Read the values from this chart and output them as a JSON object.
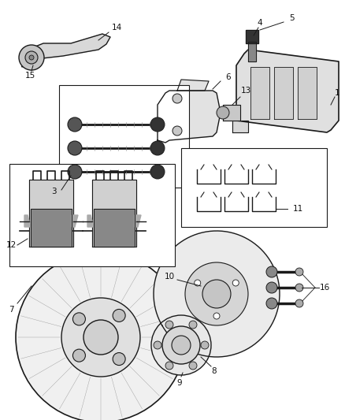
{
  "background_color": "#ffffff",
  "line_color": "#1a1a1a",
  "label_color": "#111111",
  "figsize": [
    4.38,
    5.33
  ],
  "dpi": 100,
  "xlim": [
    0,
    438
  ],
  "ylim": [
    0,
    533
  ]
}
